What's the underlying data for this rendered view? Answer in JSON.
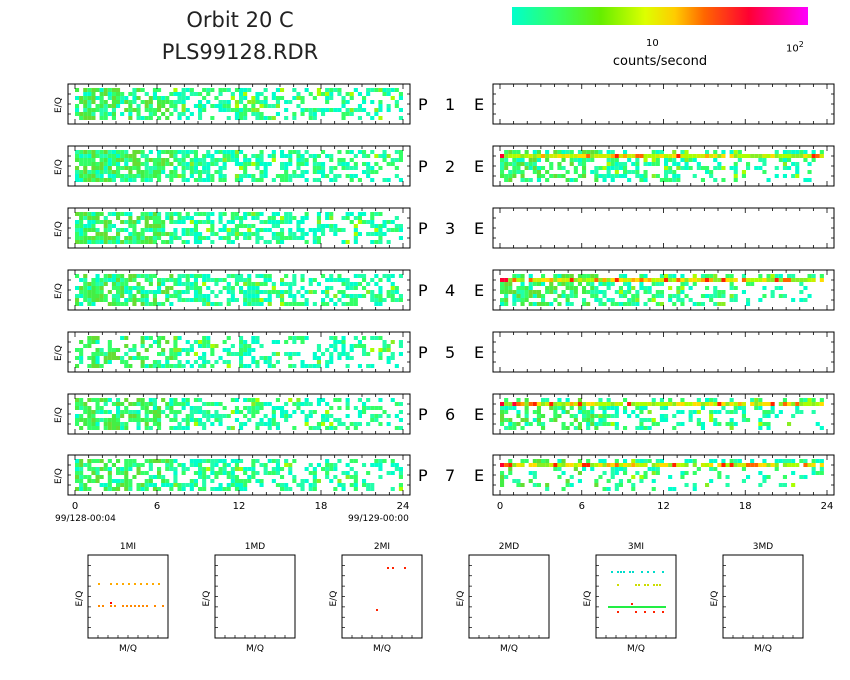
{
  "title": {
    "line1": "Orbit 20 C",
    "line2": "PLS99128.RDR"
  },
  "colorbar": {
    "label": "counts/second",
    "tick_10": "10",
    "tick_100": "10",
    "tick_100_exp": "2",
    "colors": [
      "#00ffcc",
      "#33ff66",
      "#66ee00",
      "#ddff00",
      "#ffcc00",
      "#ff6600",
      "#ff0033",
      "#ff00ff"
    ]
  },
  "chart_data": [
    {
      "type": "heatmap",
      "description_side": "left",
      "ylabel": "E/Q",
      "x_ticks": [
        "0",
        "6",
        "12",
        "18",
        "24"
      ],
      "xlim": [
        0,
        24
      ],
      "x_start_label": "99/128-00:04",
      "x_end_label": "99/129-00:00",
      "panels": [
        {
          "name": "P 1",
          "activity": 0.75
        },
        {
          "name": "P 2",
          "activity": 0.9
        },
        {
          "name": "P 3",
          "activity": 0.8
        },
        {
          "name": "P 4",
          "activity": 0.8
        },
        {
          "name": "P 5",
          "activity": 0.55
        },
        {
          "name": "P 6",
          "activity": 0.75
        },
        {
          "name": "P 7",
          "activity": 0.7
        }
      ]
    },
    {
      "type": "heatmap",
      "description_side": "right",
      "x_ticks": [
        "0",
        "6",
        "12",
        "18",
        "24"
      ],
      "xlim": [
        0,
        24
      ],
      "panels": [
        {
          "name": "E",
          "activity": 0
        },
        {
          "name": "E",
          "activity": 0.8
        },
        {
          "name": "E",
          "activity": 0
        },
        {
          "name": "E",
          "activity": 0.85
        },
        {
          "name": "E",
          "activity": 0
        },
        {
          "name": "E",
          "activity": 0.8
        },
        {
          "name": "E",
          "activity": 0.4
        }
      ]
    },
    {
      "type": "scatter",
      "xlabel": "M/Q",
      "ylabel": "E/Q",
      "panels": [
        {
          "title": "1MI"
        },
        {
          "title": "1MD"
        },
        {
          "title": "2MI"
        },
        {
          "title": "2MD"
        },
        {
          "title": "3MI"
        },
        {
          "title": "3MD"
        }
      ]
    }
  ]
}
